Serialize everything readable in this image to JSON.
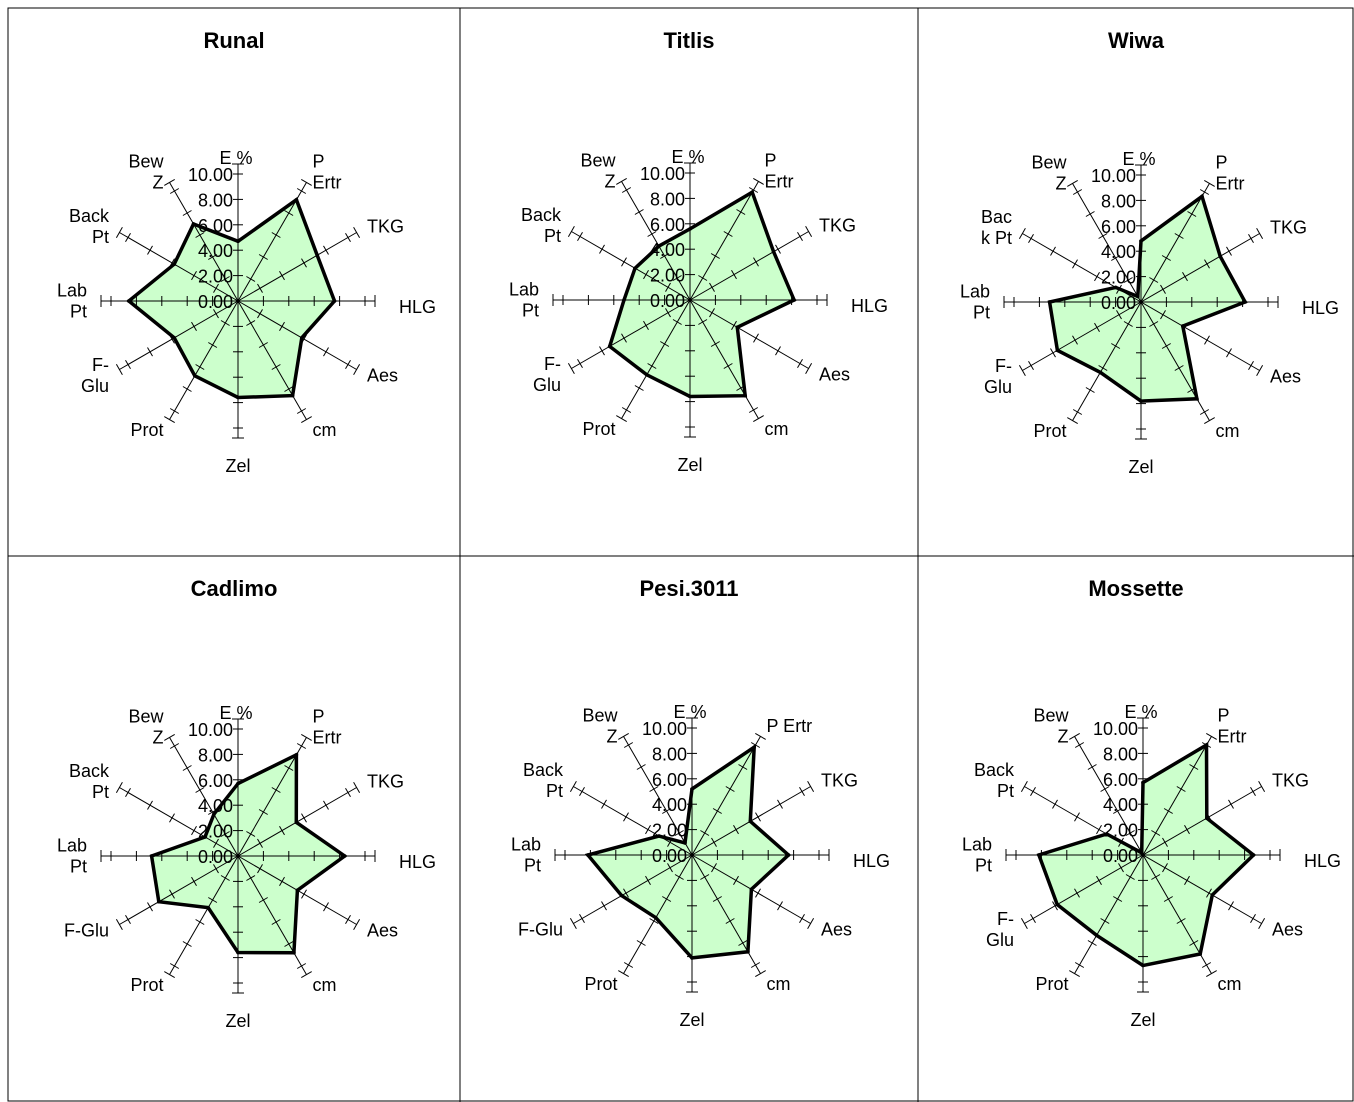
{
  "chart_data": {
    "type": "radar",
    "r_ticks": [
      "0.00",
      "2.00",
      "4.00",
      "6.00",
      "8.00",
      "10.00"
    ],
    "rlim": [
      0,
      10
    ],
    "axes": [
      [
        "E %"
      ],
      [
        "P",
        "Ertr"
      ],
      [
        "TKG"
      ],
      [
        "HLG"
      ],
      [
        "Aes"
      ],
      [
        "cm"
      ],
      [
        "Zel"
      ],
      [
        "Prot"
      ],
      [
        "F-",
        "Glu"
      ],
      [
        "Lab",
        "Pt"
      ],
      [
        "Back",
        "Pt"
      ],
      [
        "Bew",
        "Z"
      ]
    ],
    "charts": [
      {
        "title": "Runal",
        "values": [
          4.7,
          9.2,
          7.2,
          7.6,
          5.8,
          8.6,
          7.6,
          6.8,
          5.8,
          8.6,
          5.8,
          7.0
        ]
      },
      {
        "title": "Titlis",
        "values": [
          5.6,
          9.8,
          7.6,
          8.2,
          4.3,
          8.7,
          7.6,
          6.8,
          7.3,
          5.2,
          5.0,
          4.9
        ]
      },
      {
        "title": "Wiwa",
        "values": [
          4.8,
          9.6,
          7.2,
          8.2,
          3.8,
          8.8,
          7.8,
          6.4,
          7.6,
          7.2,
          2.3,
          0.5
        ],
        "axes_override": {
          "10": [
            "Bac",
            "k Pt"
          ]
        }
      },
      {
        "title": "Cadlimo",
        "values": [
          5.7,
          9.2,
          5.3,
          8.4,
          5.4,
          8.8,
          7.6,
          4.7,
          7.2,
          6.8,
          3.0,
          3.8
        ],
        "axes_override": {
          "8": [
            "F-Glu"
          ]
        }
      },
      {
        "title": "Pesi.3011",
        "values": [
          5.2,
          9.8,
          5.3,
          7.6,
          5.4,
          8.8,
          8.1,
          5.7,
          6.4,
          8.2,
          3.0,
          1.1
        ],
        "axes_override": {
          "1": [
            "P Ertr"
          ],
          "8": [
            "F-Glu"
          ]
        }
      },
      {
        "title": "Mossette",
        "values": [
          5.7,
          10.0,
          5.8,
          8.7,
          6.3,
          9.0,
          8.7,
          7.3,
          7.8,
          8.2,
          3.3,
          0.2
        ]
      }
    ]
  }
}
